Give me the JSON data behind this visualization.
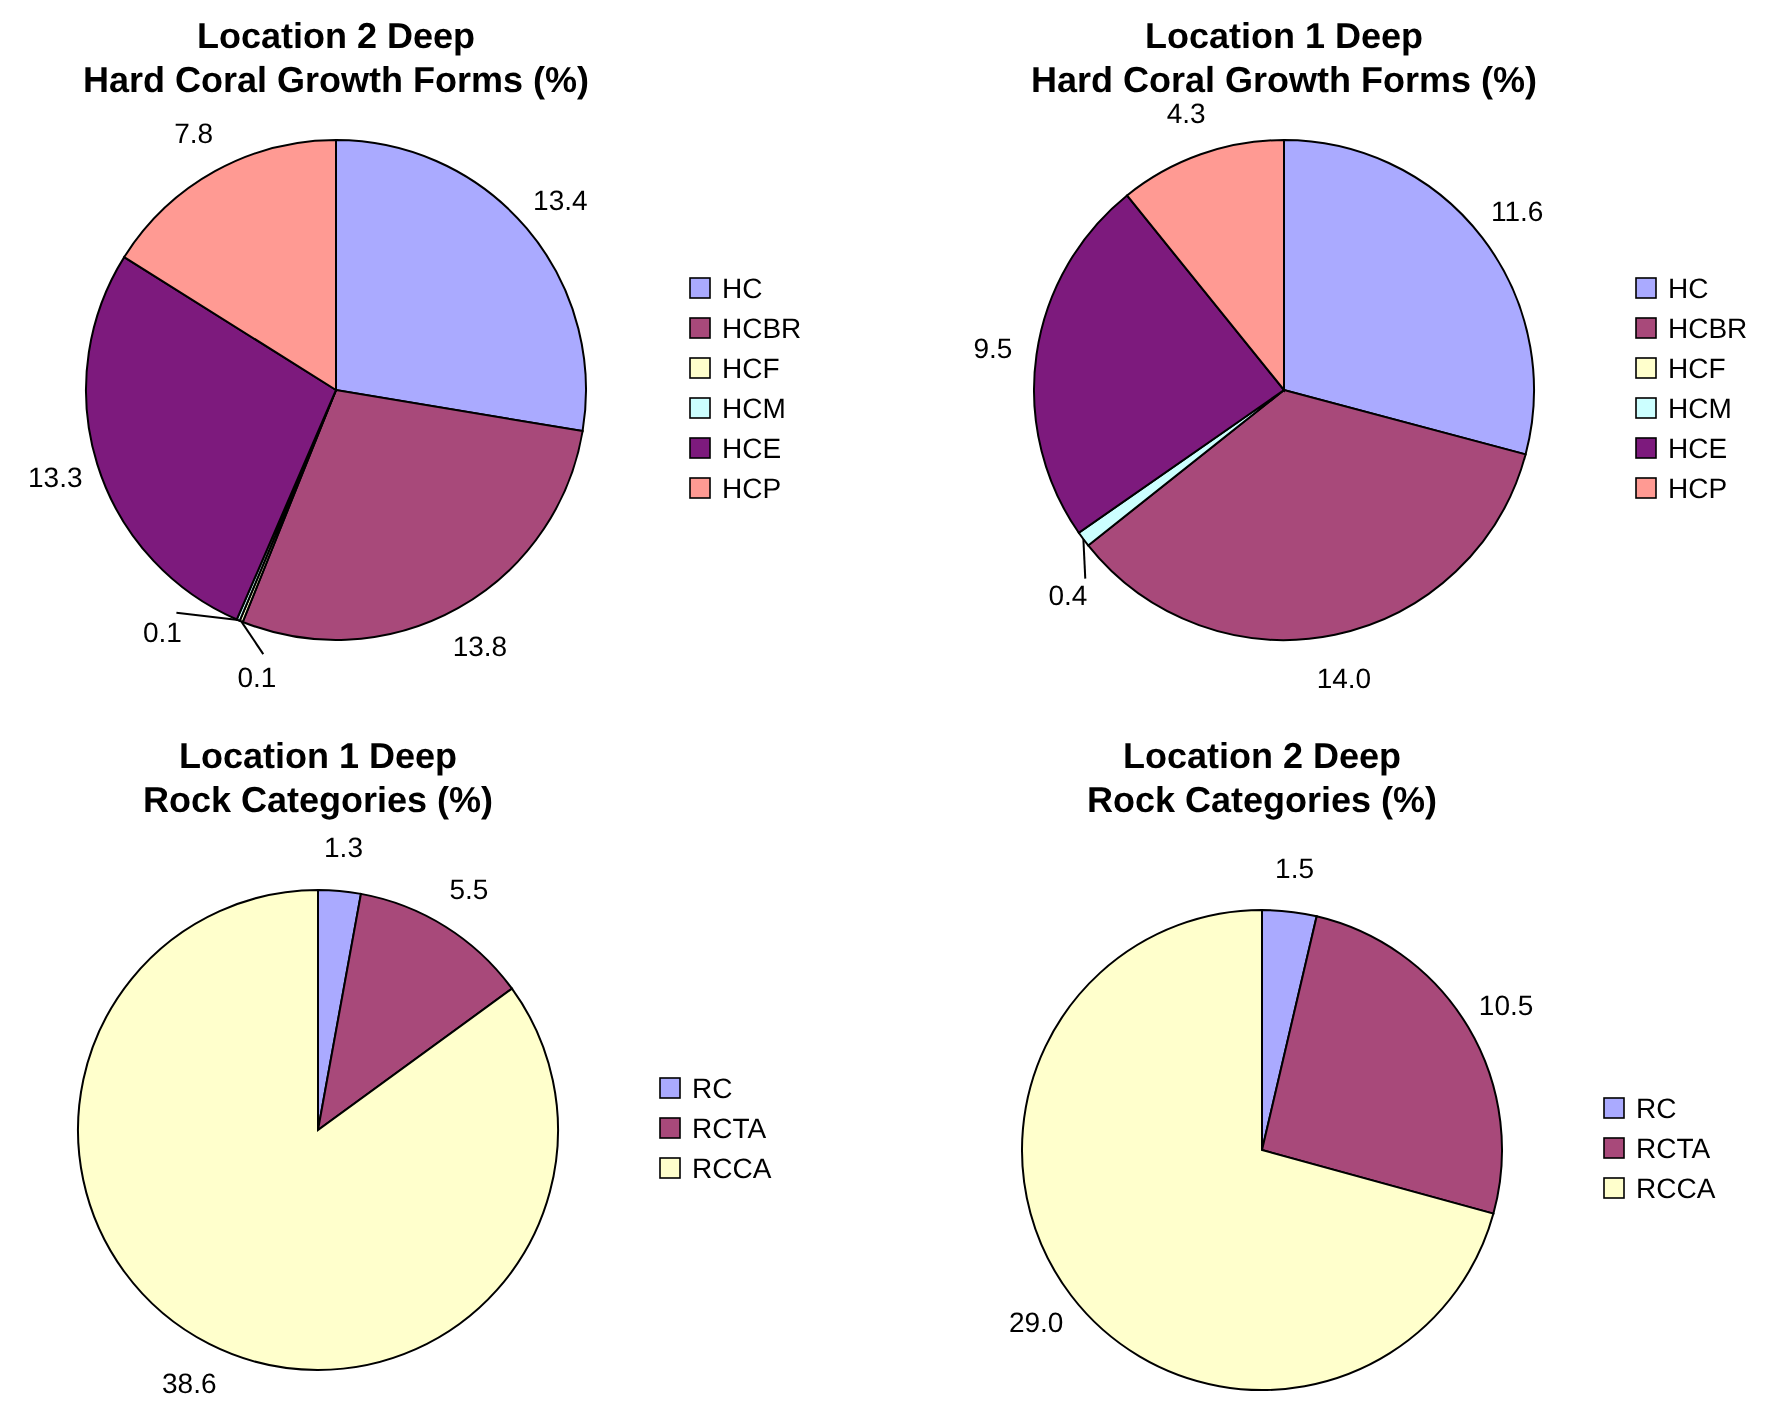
{
  "chart_data": [
    {
      "type": "pie",
      "title": "Location 2 Deep",
      "subtitle": "Hard Coral Growth Forms (%)",
      "categories": [
        "HC",
        "HCBR",
        "HCF",
        "HCM",
        "HCE",
        "HCP"
      ],
      "values": [
        13.4,
        13.8,
        0.1,
        0.1,
        13.3,
        7.8
      ],
      "value_labels": [
        "13.4",
        "13.8",
        "0.1",
        "0.1",
        "13.3",
        "7.8"
      ],
      "colors": [
        "#aaaaff",
        "#a8497a",
        "#ffffcc",
        "#ccffff",
        "#7d1a7d",
        "#ff9a93"
      ],
      "legend": "right"
    },
    {
      "type": "pie",
      "title": "Location 1 Deep",
      "subtitle": "Hard Coral Growth Forms (%)",
      "categories": [
        "HC",
        "HCBR",
        "HCF",
        "HCM",
        "HCE",
        "HCP"
      ],
      "values": [
        11.6,
        14.0,
        0,
        0.4,
        9.5,
        4.3
      ],
      "value_labels": [
        "11.6",
        "14.0",
        null,
        "0.4",
        "9.5",
        "4.3"
      ],
      "colors": [
        "#aaaaff",
        "#a8497a",
        "#ffffcc",
        "#ccffff",
        "#7d1a7d",
        "#ff9a93"
      ],
      "legend": "right"
    },
    {
      "type": "pie",
      "title": "Location 1 Deep",
      "subtitle": "Rock Categories (%)",
      "categories": [
        "RC",
        "RCTA",
        "RCCA"
      ],
      "values": [
        1.3,
        5.5,
        38.6
      ],
      "value_labels": [
        "1.3",
        "5.5",
        "38.6"
      ],
      "colors": [
        "#aaaaff",
        "#a8497a",
        "#ffffcc"
      ],
      "legend": "right"
    },
    {
      "type": "pie",
      "title": "Location 2 Deep",
      "subtitle": "Rock Categories (%)",
      "categories": [
        "RC",
        "RCTA",
        "RCCA"
      ],
      "values": [
        1.5,
        10.5,
        29.0
      ],
      "value_labels": [
        "1.5",
        "10.5",
        "29.0"
      ],
      "colors": [
        "#aaaaff",
        "#a8497a",
        "#ffffcc"
      ],
      "legend": "right"
    }
  ]
}
